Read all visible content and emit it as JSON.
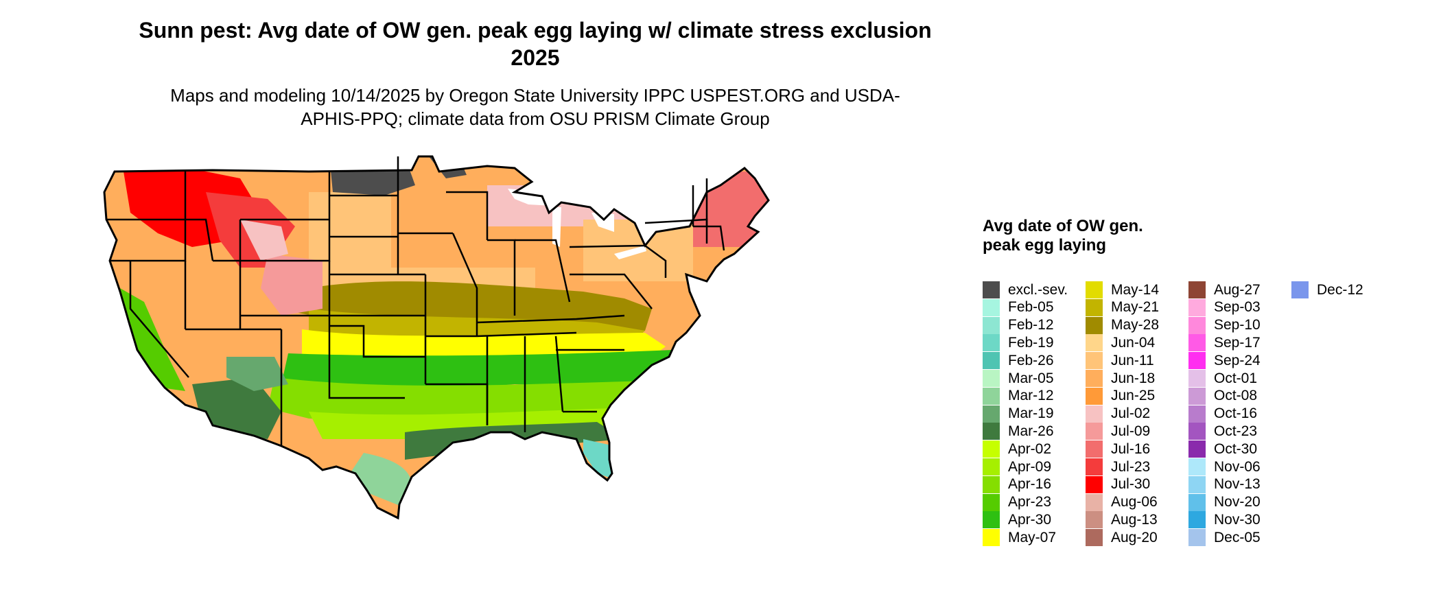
{
  "map": {
    "title": "Sunn pest: Avg date of OW gen. peak egg laying w/ climate stress exclusion 2025",
    "subtitle": "Maps and modeling 10/14/2025 by Oregon State University IPPC USPEST.ORG and USDA-APHIS-PPQ; climate data from OSU PRISM Climate Group",
    "region": "Contiguous United States"
  },
  "legend": {
    "title": "Avg date of OW gen. peak egg laying",
    "items": [
      {
        "label": "excl.-sev.",
        "color": "#4d4d4d"
      },
      {
        "label": "Feb-05",
        "color": "#a6f5e0"
      },
      {
        "label": "Feb-12",
        "color": "#8de6d2"
      },
      {
        "label": "Feb-19",
        "color": "#6dd8c6"
      },
      {
        "label": "Feb-26",
        "color": "#4fc4b2"
      },
      {
        "label": "Mar-05",
        "color": "#b9f5c3"
      },
      {
        "label": "Mar-12",
        "color": "#8fd49a"
      },
      {
        "label": "Mar-19",
        "color": "#66a86e"
      },
      {
        "label": "Mar-26",
        "color": "#3f7a3e"
      },
      {
        "label": "Apr-02",
        "color": "#c6ff00"
      },
      {
        "label": "Apr-09",
        "color": "#a6ef00"
      },
      {
        "label": "Apr-16",
        "color": "#85de00"
      },
      {
        "label": "Apr-23",
        "color": "#55cc00"
      },
      {
        "label": "Apr-30",
        "color": "#2ec012"
      },
      {
        "label": "May-07",
        "color": "#ffff00"
      },
      {
        "label": "May-14",
        "color": "#e2dc00"
      },
      {
        "label": "May-21",
        "color": "#c2b400"
      },
      {
        "label": "May-28",
        "color": "#a08b00"
      },
      {
        "label": "Jun-04",
        "color": "#ffd68a"
      },
      {
        "label": "Jun-11",
        "color": "#ffc478"
      },
      {
        "label": "Jun-18",
        "color": "#ffae5c"
      },
      {
        "label": "Jun-25",
        "color": "#ff9a38"
      },
      {
        "label": "Jul-02",
        "color": "#f7c2c2"
      },
      {
        "label": "Jul-09",
        "color": "#f59a9a"
      },
      {
        "label": "Jul-16",
        "color": "#f26d6d"
      },
      {
        "label": "Jul-23",
        "color": "#f43c3c"
      },
      {
        "label": "Jul-30",
        "color": "#ff0000"
      },
      {
        "label": "Aug-06",
        "color": "#e8b2a6"
      },
      {
        "label": "Aug-13",
        "color": "#cc8f82"
      },
      {
        "label": "Aug-20",
        "color": "#ad6a5e"
      },
      {
        "label": "Aug-27",
        "color": "#8e4534"
      },
      {
        "label": "Sep-03",
        "color": "#ffaade"
      },
      {
        "label": "Sep-10",
        "color": "#ff88dc"
      },
      {
        "label": "Sep-17",
        "color": "#ff5ae6"
      },
      {
        "label": "Sep-24",
        "color": "#ff2ef0"
      },
      {
        "label": "Oct-01",
        "color": "#e4c0e8"
      },
      {
        "label": "Oct-08",
        "color": "#cc9ad6"
      },
      {
        "label": "Oct-16",
        "color": "#b87ccc"
      },
      {
        "label": "Oct-23",
        "color": "#a355c0"
      },
      {
        "label": "Oct-30",
        "color": "#8a2aac"
      },
      {
        "label": "Nov-06",
        "color": "#aee8fa"
      },
      {
        "label": "Nov-13",
        "color": "#8ed5f3"
      },
      {
        "label": "Nov-20",
        "color": "#60c0ea"
      },
      {
        "label": "Nov-30",
        "color": "#2ea8e0"
      },
      {
        "label": "Dec-05",
        "color": "#a4c4ec"
      },
      {
        "label": "Dec-12",
        "color": "#7a96ec"
      }
    ]
  },
  "colors": {
    "state_border": "#000000",
    "background": "#ffffff",
    "lake": "#ffffff"
  }
}
